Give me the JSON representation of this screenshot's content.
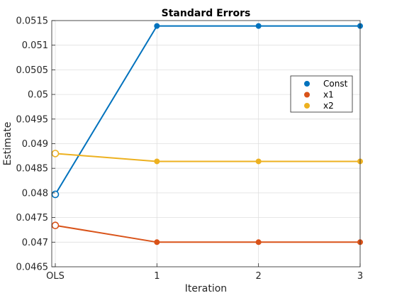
{
  "chart_data": {
    "type": "line",
    "title": "Standard Errors",
    "xlabel": "Iteration",
    "ylabel": "Estimate",
    "categories": [
      "OLS",
      "1",
      "2",
      "3"
    ],
    "ylim": [
      0.0465,
      0.0515
    ],
    "yticks": [
      0.0465,
      0.047,
      0.0475,
      0.048,
      0.0485,
      0.049,
      0.0495,
      0.05,
      0.0505,
      0.051,
      0.0515
    ],
    "ytick_labels": [
      "0.0465",
      "0.047",
      "0.0475",
      "0.048",
      "0.0485",
      "0.049",
      "0.0495",
      "0.05",
      "0.0505",
      "0.051",
      "0.0515"
    ],
    "grid": true,
    "legend_position": "upper-right",
    "series": [
      {
        "name": "Const",
        "color": "#0072BD",
        "values": [
          0.04797,
          0.05139,
          0.05139,
          0.05139
        ]
      },
      {
        "name": "x1",
        "color": "#D95319",
        "values": [
          0.04734,
          0.047,
          0.047,
          0.047
        ]
      },
      {
        "name": "x2",
        "color": "#EDB120",
        "values": [
          0.0488,
          0.04864,
          0.04864,
          0.04864
        ]
      }
    ]
  }
}
